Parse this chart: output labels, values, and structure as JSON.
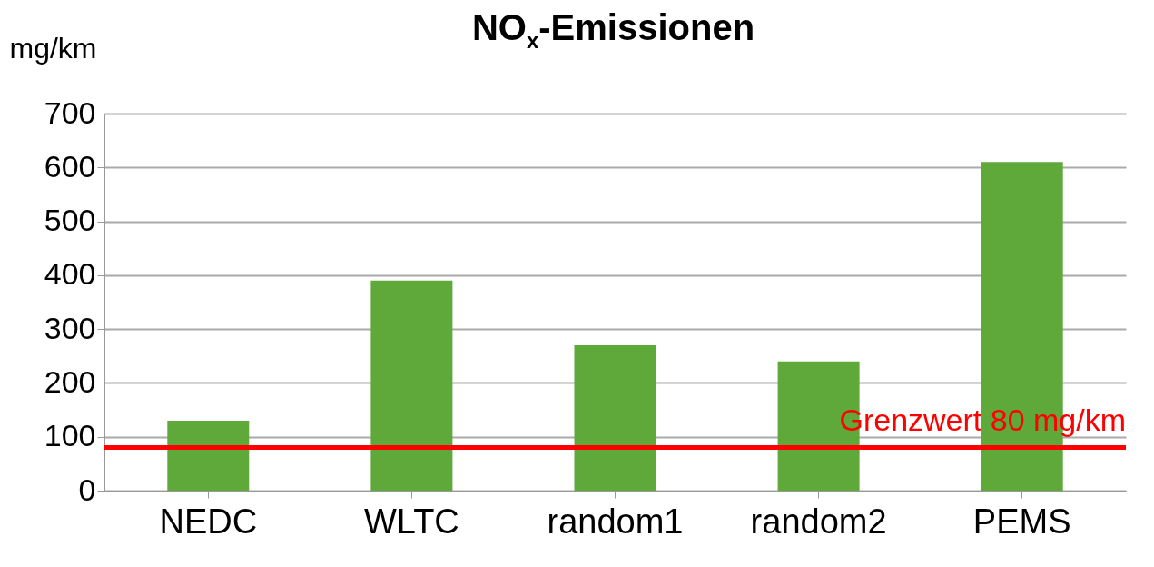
{
  "chart_data": {
    "type": "bar",
    "title": "NO$_{x}$-Emissionen",
    "ylabel": "mg/km",
    "categories": [
      "NEDC",
      "WLTC",
      "random1",
      "random2",
      "PEMS"
    ],
    "values": [
      130,
      390,
      270,
      240,
      610
    ],
    "color": "#5fa83a",
    "ylim": [
      0,
      700
    ],
    "yticks": [
      0,
      100,
      200,
      300,
      400,
      500,
      600,
      700
    ],
    "grid": "y",
    "ref_lines": [
      {
        "axis": "y",
        "value": 80,
        "label": "Grenzwert 80 mg/km",
        "color": "#ff0000"
      }
    ]
  }
}
